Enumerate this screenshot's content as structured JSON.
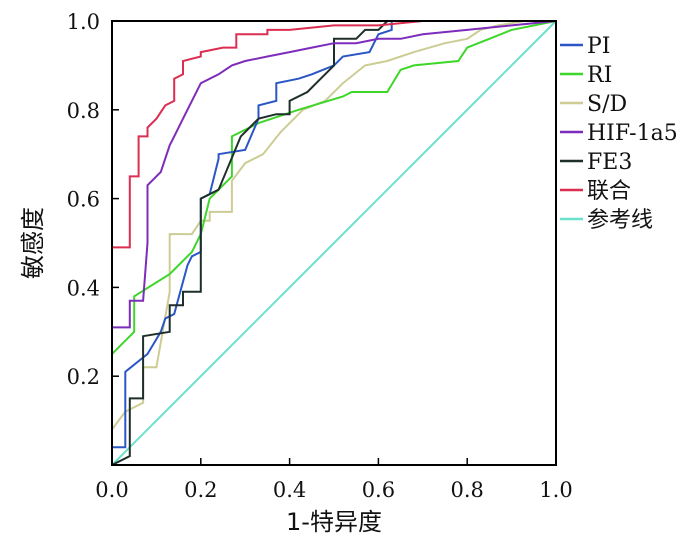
{
  "chart_data": {
    "type": "line",
    "title": "",
    "xlabel": "1-特异度",
    "ylabel": "敏感度",
    "xlim": [
      0.0,
      1.0
    ],
    "ylim": [
      0.0,
      1.0
    ],
    "x_ticks": [
      "0.0",
      "0.2",
      "0.4",
      "0.6",
      "0.8",
      "1.0"
    ],
    "y_ticks": [
      "0.2",
      "0.4",
      "0.6",
      "0.8",
      "1.0"
    ],
    "grid": false,
    "legend_position": "right",
    "series": [
      {
        "name": "PI",
        "color": "#2a56c6",
        "x": [
          0.0,
          0.0,
          0.03,
          0.03,
          0.08,
          0.11,
          0.12,
          0.14,
          0.17,
          0.18,
          0.2,
          0.2,
          0.22,
          0.24,
          0.24,
          0.3,
          0.33,
          0.33,
          0.37,
          0.37,
          0.42,
          0.45,
          0.5,
          0.52,
          0.58,
          0.6,
          0.63,
          0.63,
          1.0
        ],
        "y": [
          0.0,
          0.04,
          0.04,
          0.21,
          0.25,
          0.3,
          0.33,
          0.34,
          0.45,
          0.47,
          0.48,
          0.6,
          0.61,
          0.69,
          0.7,
          0.71,
          0.78,
          0.81,
          0.82,
          0.86,
          0.87,
          0.88,
          0.9,
          0.92,
          0.93,
          0.97,
          0.98,
          1.0,
          1.0
        ]
      },
      {
        "name": "RI",
        "color": "#3ed62a",
        "x": [
          0.0,
          0.0,
          0.05,
          0.05,
          0.13,
          0.18,
          0.2,
          0.22,
          0.27,
          0.27,
          0.33,
          0.42,
          0.52,
          0.54,
          0.62,
          0.65,
          0.68,
          0.78,
          0.8,
          0.85,
          0.9,
          1.0
        ],
        "y": [
          0.0,
          0.25,
          0.3,
          0.38,
          0.43,
          0.48,
          0.52,
          0.6,
          0.65,
          0.74,
          0.77,
          0.8,
          0.83,
          0.84,
          0.84,
          0.89,
          0.9,
          0.91,
          0.94,
          0.96,
          0.98,
          1.0
        ]
      },
      {
        "name": "S/D",
        "color": "#cccc94",
        "x": [
          0.0,
          0.0,
          0.03,
          0.07,
          0.07,
          0.1,
          0.13,
          0.13,
          0.18,
          0.2,
          0.22,
          0.22,
          0.27,
          0.27,
          0.3,
          0.34,
          0.38,
          0.43,
          0.48,
          0.52,
          0.57,
          0.62,
          0.68,
          0.75,
          0.8,
          0.83,
          0.87,
          0.93,
          1.0
        ],
        "y": [
          0.0,
          0.08,
          0.12,
          0.14,
          0.22,
          0.22,
          0.39,
          0.52,
          0.52,
          0.55,
          0.55,
          0.57,
          0.57,
          0.64,
          0.68,
          0.7,
          0.75,
          0.8,
          0.82,
          0.86,
          0.9,
          0.91,
          0.93,
          0.95,
          0.96,
          0.98,
          0.99,
          1.0,
          1.0
        ]
      },
      {
        "name": "HIF-1a5",
        "color": "#7d2cbb",
        "x": [
          0.0,
          0.0,
          0.04,
          0.04,
          0.07,
          0.08,
          0.08,
          0.11,
          0.13,
          0.14,
          0.16,
          0.18,
          0.2,
          0.24,
          0.27,
          0.3,
          0.35,
          0.4,
          0.45,
          0.5,
          0.55,
          0.6,
          0.65,
          0.7,
          0.8,
          0.9,
          1.0
        ],
        "y": [
          0.0,
          0.31,
          0.31,
          0.37,
          0.37,
          0.5,
          0.63,
          0.66,
          0.72,
          0.74,
          0.78,
          0.82,
          0.86,
          0.88,
          0.9,
          0.91,
          0.92,
          0.93,
          0.94,
          0.95,
          0.95,
          0.96,
          0.96,
          0.97,
          0.98,
          0.99,
          1.0
        ]
      },
      {
        "name": "FE3",
        "color": "#1e2e2b",
        "x": [
          0.0,
          0.0,
          0.04,
          0.04,
          0.07,
          0.07,
          0.13,
          0.13,
          0.16,
          0.16,
          0.2,
          0.2,
          0.24,
          0.24,
          0.29,
          0.29,
          0.33,
          0.37,
          0.4,
          0.4,
          0.44,
          0.47,
          0.5,
          0.5,
          0.55,
          0.57,
          0.6,
          0.62,
          1.0
        ],
        "y": [
          0.0,
          0.0,
          0.02,
          0.15,
          0.15,
          0.29,
          0.3,
          0.36,
          0.36,
          0.39,
          0.39,
          0.6,
          0.62,
          0.62,
          0.74,
          0.74,
          0.78,
          0.79,
          0.79,
          0.82,
          0.84,
          0.87,
          0.9,
          0.96,
          0.96,
          0.98,
          0.98,
          1.0,
          1.0
        ]
      },
      {
        "name": "联合",
        "color": "#db2e51",
        "x": [
          0.0,
          0.0,
          0.04,
          0.04,
          0.06,
          0.06,
          0.08,
          0.08,
          0.1,
          0.12,
          0.14,
          0.14,
          0.16,
          0.16,
          0.2,
          0.2,
          0.25,
          0.28,
          0.28,
          0.3,
          0.35,
          0.35,
          0.4,
          0.5,
          0.52,
          0.6,
          0.7,
          0.8,
          0.9,
          1.0
        ],
        "y": [
          0.0,
          0.49,
          0.49,
          0.65,
          0.65,
          0.74,
          0.74,
          0.76,
          0.78,
          0.81,
          0.82,
          0.87,
          0.88,
          0.91,
          0.92,
          0.93,
          0.94,
          0.94,
          0.97,
          0.97,
          0.97,
          0.98,
          0.98,
          0.99,
          0.99,
          0.99,
          1.0,
          1.0,
          1.0,
          1.0
        ]
      },
      {
        "name": "参考线",
        "color": "#6be0cc",
        "x": [
          0.0,
          1.0
        ],
        "y": [
          0.0,
          1.0
        ]
      }
    ]
  }
}
